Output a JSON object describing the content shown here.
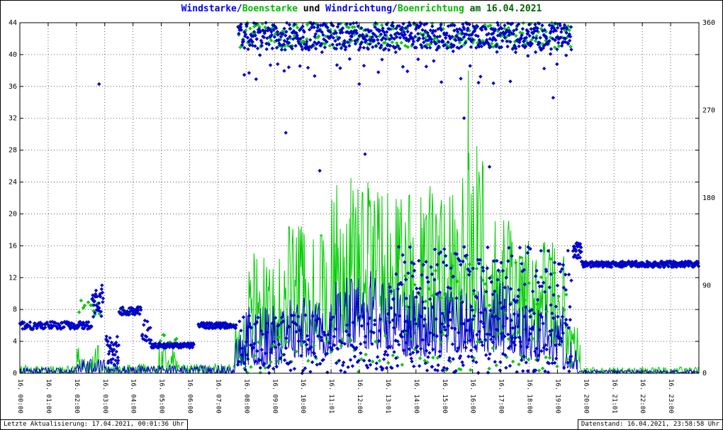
{
  "title": {
    "full": "Windstarke/Boenstarke und Windrichtung/Boenrichtung am 16.04.2021",
    "parts": [
      {
        "text": "Windstarke/",
        "color": "#0000ee"
      },
      {
        "text": "Boenstarke",
        "color": "#00bb00"
      },
      {
        "text": " und ",
        "color": "#000000"
      },
      {
        "text": "Windrichtung/",
        "color": "#0000ee"
      },
      {
        "text": "Boenrichtung",
        "color": "#00bb00"
      },
      {
        "text": " am 16.04.2021",
        "color": "#006400"
      }
    ]
  },
  "footer": {
    "left": "Letzte Aktualisierung: 17.04.2021, 00:01:36 Uhr",
    "right": "Datenstand: 16.04.2021, 23:58:58 Uhr"
  },
  "colors": {
    "wind": "#0000cc",
    "gust": "#00cc00",
    "grid": "#3c3c3c",
    "frame": "#000000",
    "background": "#ffffff"
  },
  "chart_data": {
    "type": "line+scatter",
    "title": "Windstarke/Boenstarke und Windrichtung/Boenrichtung am 16.04.2021",
    "grid": {
      "style": "dotted",
      "horizontal_step_left_axis": 4,
      "vertical_step_hours": 1
    },
    "x_axis": {
      "range_hours": [
        0,
        24
      ],
      "tick_hours": [
        0,
        1,
        2,
        3,
        4,
        5,
        6,
        7,
        8,
        9,
        10,
        11,
        12,
        13,
        14,
        15,
        16,
        17,
        18,
        19,
        20,
        21,
        22,
        23
      ],
      "tick_labels": [
        "16. 00:00",
        "16. 01:00",
        "16. 02:00",
        "16. 03:00",
        "16. 04:00",
        "16. 05:00",
        "16. 06:00",
        "16. 07:00",
        "16. 08:00",
        "16. 09:00",
        "16. 10:00",
        "16. 11:01",
        "16. 12:00",
        "16. 13:01",
        "16. 14:00",
        "16. 15:00",
        "16. 16:00",
        "16. 17:00",
        "16. 18:00",
        "16. 19:00",
        "16. 20:00",
        "16. 21:01",
        "16. 22:00",
        "16. 23:00"
      ]
    },
    "y_left": {
      "range": [
        0,
        44
      ],
      "ticks": [
        0,
        4,
        8,
        12,
        16,
        20,
        24,
        28,
        32,
        36,
        40,
        44
      ],
      "meaning": "Windstarke/Boenstarke"
    },
    "y_right": {
      "range": [
        0,
        360
      ],
      "ticks": [
        0,
        90,
        180,
        270,
        360
      ],
      "meaning": "Windrichtung/Boenrichtung in Grad"
    },
    "series": [
      {
        "name": "Windstarke",
        "type": "line",
        "axis": "left",
        "color": "#0000cc",
        "envelope_segments": [
          [
            0,
            2,
            0,
            0.7
          ],
          [
            2,
            3,
            0,
            1.8
          ],
          [
            3,
            7.6,
            0,
            1
          ],
          [
            7.6,
            8,
            0.5,
            5
          ],
          [
            8,
            9.5,
            1,
            8.5
          ],
          [
            9.5,
            11,
            2,
            9.5
          ],
          [
            11,
            13.5,
            3,
            12
          ],
          [
            13.5,
            15.5,
            2,
            10.5
          ],
          [
            15.5,
            17.5,
            2.5,
            11.5
          ],
          [
            17.5,
            19.2,
            1.5,
            9
          ],
          [
            19.2,
            19.7,
            0.5,
            4
          ],
          [
            19.7,
            24,
            0,
            0.4
          ]
        ],
        "peaks": [
          [
            12.4,
            12.8
          ],
          [
            16.3,
            12.2
          ]
        ]
      },
      {
        "name": "Boenstarke",
        "type": "line",
        "axis": "left",
        "color": "#00cc00",
        "envelope_segments": [
          [
            0,
            2,
            0,
            1
          ],
          [
            2,
            2.8,
            0,
            3.5
          ],
          [
            2.8,
            4.9,
            0,
            1.2
          ],
          [
            4.9,
            5.6,
            0,
            3.8
          ],
          [
            5.6,
            7.6,
            0,
            1.2
          ],
          [
            7.6,
            8.1,
            1,
            7
          ],
          [
            8.1,
            9.5,
            3,
            15.5
          ],
          [
            9.5,
            11,
            4,
            19
          ],
          [
            11,
            13.5,
            5,
            24.5
          ],
          [
            13.5,
            15.6,
            4,
            23
          ],
          [
            15.6,
            16.4,
            5,
            29
          ],
          [
            16.4,
            17.5,
            4,
            20
          ],
          [
            17.5,
            19.3,
            3,
            17
          ],
          [
            19.3,
            19.8,
            1,
            6
          ],
          [
            19.8,
            24,
            0,
            0.8
          ]
        ],
        "peaks": [
          [
            11.7,
            24.5
          ],
          [
            12.3,
            24
          ],
          [
            14.5,
            23.5
          ],
          [
            15.85,
            38
          ],
          [
            16.15,
            28.5
          ]
        ]
      },
      {
        "name": "Windrichtung",
        "type": "scatter",
        "marker": "diamond",
        "axis": "right",
        "color": "#0000cc",
        "clusters": [
          [
            0,
            2.55,
            45,
            53,
            110
          ],
          [
            2.55,
            2.95,
            58,
            92,
            30
          ],
          [
            3.05,
            3.5,
            8,
            38,
            35
          ],
          [
            3.5,
            4.3,
            60,
            68,
            40
          ],
          [
            4.3,
            4.65,
            30,
            56,
            16
          ],
          [
            4.65,
            6.15,
            26,
            31,
            100
          ],
          [
            6.3,
            7.65,
            46,
            52,
            95
          ],
          [
            7.7,
            19.5,
            332,
            360,
            650
          ],
          [
            7.7,
            19.5,
            296,
            331,
            40
          ],
          [
            7.7,
            19.5,
            0,
            60,
            380
          ],
          [
            13,
            19.5,
            60,
            130,
            160
          ],
          [
            19.55,
            19.85,
            118,
            134,
            25
          ],
          [
            19.85,
            24,
            109,
            115,
            260
          ]
        ],
        "outliers": [
          [
            2.8,
            297
          ],
          [
            8.35,
            302
          ],
          [
            9.4,
            247
          ],
          [
            10.6,
            208
          ],
          [
            12.2,
            225
          ],
          [
            15.7,
            262
          ],
          [
            16.6,
            212
          ],
          [
            18.85,
            283
          ]
        ]
      },
      {
        "name": "Boenrichtung",
        "type": "scatter",
        "marker": "diamond",
        "axis": "right",
        "color": "#00cc00",
        "clusters": [
          [
            2.05,
            2.85,
            48,
            75,
            12
          ],
          [
            3.55,
            4.25,
            60,
            67,
            12
          ],
          [
            4.9,
            5.6,
            28,
            40,
            8
          ],
          [
            6.35,
            7.6,
            46,
            52,
            10
          ],
          [
            7.7,
            19.5,
            334,
            360,
            260
          ],
          [
            7.7,
            19.5,
            0,
            45,
            90
          ],
          [
            13.5,
            19.4,
            60,
            120,
            45
          ],
          [
            19.85,
            24,
            110,
            114,
            70
          ]
        ],
        "outliers": []
      }
    ]
  }
}
